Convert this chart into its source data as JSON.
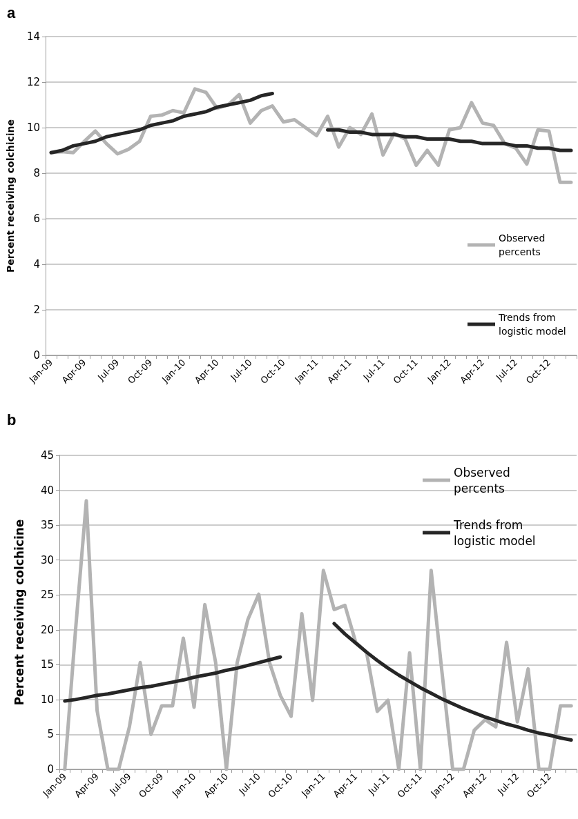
{
  "chart_data": [
    {
      "type": "line",
      "title": "a",
      "ylabel": "Percent receiving colchicine",
      "categories": [
        "Jan-09",
        null,
        null,
        "Apr-09",
        null,
        null,
        "Jul-09",
        null,
        null,
        "Oct-09",
        null,
        null,
        "Jan-10",
        null,
        null,
        "Apr-10",
        null,
        null,
        "Jul-10",
        null,
        null,
        "Oct-10",
        null,
        null,
        "Jan-11",
        null,
        null,
        "Apr-11",
        null,
        null,
        "Jul-11",
        null,
        null,
        "Oct-11",
        null,
        null,
        "Jan-12",
        null,
        null,
        "Apr-12",
        null,
        null,
        "Jul-12",
        null,
        null,
        "Oct-12",
        null,
        null
      ],
      "series": [
        {
          "name": "Observed percents",
          "color": "#b3b3b3",
          "values": [
            8.9,
            8.95,
            8.9,
            9.4,
            9.85,
            9.3,
            8.85,
            9.05,
            9.4,
            10.5,
            10.55,
            10.75,
            10.65,
            11.7,
            11.55,
            10.85,
            11.0,
            11.45,
            10.2,
            10.75,
            10.95,
            10.25,
            10.35,
            10.0,
            9.65,
            10.5,
            9.15,
            10.0,
            9.7,
            10.6,
            8.8,
            9.75,
            9.5,
            8.35,
            9.0,
            8.35,
            9.9,
            10.0,
            11.1,
            10.2,
            10.1,
            9.3,
            9.1,
            8.4,
            9.9,
            9.85,
            7.6,
            7.6
          ]
        },
        {
          "name": "Trends from logistic model",
          "color": "#262626",
          "values": [
            8.9,
            9.0,
            9.2,
            9.3,
            9.4,
            9.6,
            9.7,
            9.8,
            9.9,
            10.1,
            10.2,
            10.3,
            10.5,
            10.6,
            10.7,
            10.9,
            11.0,
            11.1,
            11.2,
            11.4,
            11.5,
            null,
            null,
            null,
            null,
            9.9,
            9.9,
            9.8,
            9.8,
            9.7,
            9.7,
            9.7,
            9.6,
            9.6,
            9.5,
            9.5,
            9.5,
            9.4,
            9.4,
            9.3,
            9.3,
            9.3,
            9.2,
            9.2,
            9.1,
            9.1,
            9.0,
            9.0
          ]
        }
      ],
      "ylim": [
        0,
        14
      ],
      "yticks": [
        0,
        2,
        4,
        6,
        8,
        10,
        12,
        14
      ],
      "grid": "y",
      "legend": "right",
      "marker": "none",
      "line_style": "solid"
    },
    {
      "type": "line",
      "title": "b",
      "ylabel": "Percent receiving colchicine",
      "categories": [
        "Jan-09",
        null,
        null,
        "Apr-09",
        null,
        null,
        "Jul-09",
        null,
        null,
        "Oct-09",
        null,
        null,
        "Jan-10",
        null,
        null,
        "Apr-10",
        null,
        null,
        "Jul-10",
        null,
        null,
        "Oct-10",
        null,
        null,
        "Jan-11",
        null,
        null,
        "Apr-11",
        null,
        null,
        "Jul-11",
        null,
        null,
        "Oct-11",
        null,
        null,
        "Jan-12",
        null,
        null,
        "Apr-12",
        null,
        null,
        "Jul-12",
        null,
        null,
        "Oct-12",
        null,
        null
      ],
      "series": [
        {
          "name": "Observed percents",
          "color": "#b3b3b3",
          "values": [
            0,
            20,
            38.5,
            8.4,
            0,
            0,
            6.1,
            15.3,
            5.0,
            9.1,
            9.1,
            18.8,
            8.9,
            23.6,
            15.3,
            0,
            15.3,
            21.5,
            25.1,
            15.3,
            10.6,
            7.6,
            22.3,
            9.9,
            28.5,
            22.9,
            23.5,
            18.2,
            16.8,
            8.3,
            9.9,
            0,
            16.7,
            0,
            28.5,
            14,
            0,
            0,
            5.6,
            7.1,
            6.1,
            18.2,
            6.8,
            14.4,
            0,
            0,
            9.1,
            9.1
          ]
        },
        {
          "name": "Trends from logistic model",
          "color": "#262626",
          "values": [
            9.8,
            10.0,
            10.3,
            10.6,
            10.8,
            11.1,
            11.4,
            11.7,
            11.9,
            12.2,
            12.5,
            12.8,
            13.2,
            13.5,
            13.8,
            14.2,
            14.5,
            14.9,
            15.3,
            15.7,
            16.1,
            null,
            null,
            null,
            null,
            20.9,
            19.4,
            18.1,
            16.8,
            15.6,
            14.5,
            13.5,
            12.6,
            11.7,
            10.9,
            10.1,
            9.4,
            8.7,
            8.1,
            7.5,
            7.0,
            6.5,
            6.1,
            5.6,
            5.2,
            4.9,
            4.5,
            4.2
          ]
        }
      ],
      "ylim": [
        0,
        45
      ],
      "yticks": [
        0,
        5,
        10,
        15,
        20,
        25,
        30,
        35,
        40,
        45
      ],
      "grid": "y",
      "legend": "top right",
      "marker": "none",
      "line_style": "solid"
    }
  ]
}
